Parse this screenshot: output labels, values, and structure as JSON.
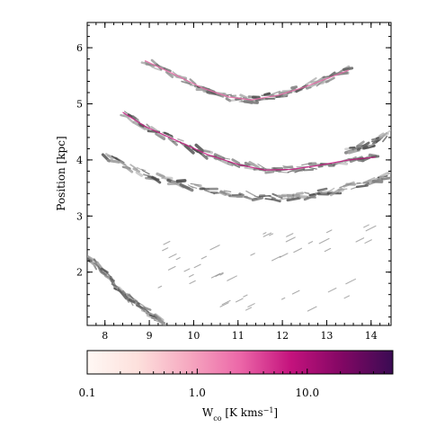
{
  "chart_data": {
    "type": "heatmap",
    "title": "",
    "xlabel": "",
    "ylabel": "Position [kpc]",
    "xlim": [
      7.6,
      14.45
    ],
    "ylim": [
      1.05,
      6.45
    ],
    "x_ticks": [
      "8",
      "9",
      "10",
      "11",
      "12",
      "13",
      "14"
    ],
    "y_ticks": [
      "2",
      "3",
      "4",
      "5",
      "6"
    ],
    "grid": false,
    "features": [
      {
        "name": "upper-arc",
        "points": [
          [
            8.9,
            5.77
          ],
          [
            9.5,
            5.55
          ],
          [
            10.2,
            5.28
          ],
          [
            10.8,
            5.12
          ],
          [
            11.3,
            5.07
          ],
          [
            11.9,
            5.15
          ],
          [
            12.5,
            5.3
          ],
          [
            13.0,
            5.45
          ],
          [
            13.5,
            5.6
          ]
        ],
        "intensity": 3
      },
      {
        "name": "middle-arc",
        "points": [
          [
            8.4,
            4.85
          ],
          [
            8.9,
            4.6
          ],
          [
            9.6,
            4.35
          ],
          [
            10.3,
            4.1
          ],
          [
            11.0,
            3.92
          ],
          [
            11.6,
            3.82
          ],
          [
            12.2,
            3.83
          ],
          [
            12.8,
            3.9
          ],
          [
            13.5,
            4.0
          ],
          [
            14.1,
            4.05
          ]
        ],
        "intensity": 9
      },
      {
        "name": "lower-arc",
        "points": [
          [
            8.0,
            4.08
          ],
          [
            8.6,
            3.85
          ],
          [
            9.2,
            3.68
          ],
          [
            9.9,
            3.55
          ],
          [
            10.6,
            3.44
          ],
          [
            11.3,
            3.35
          ],
          [
            12.0,
            3.32
          ],
          [
            12.7,
            3.38
          ],
          [
            13.4,
            3.5
          ],
          [
            14.0,
            3.62
          ],
          [
            14.45,
            3.72
          ]
        ],
        "intensity": 2.5
      },
      {
        "name": "left-edge-streak",
        "points": [
          [
            7.6,
            2.3
          ],
          [
            7.9,
            2.05
          ],
          [
            8.2,
            1.8
          ],
          [
            8.5,
            1.58
          ],
          [
            8.8,
            1.38
          ],
          [
            9.1,
            1.22
          ],
          [
            9.3,
            1.12
          ]
        ],
        "intensity": 2
      },
      {
        "name": "right-upper-streak",
        "points": [
          [
            13.5,
            4.15
          ],
          [
            13.8,
            4.25
          ],
          [
            14.1,
            4.32
          ],
          [
            14.35,
            4.45
          ]
        ],
        "intensity": 1.5
      }
    ],
    "colorbar": {
      "label_main": "W",
      "label_sub": "co",
      "label_units": " [K kms",
      "label_exp": "−1",
      "label_end": "]",
      "scale": "log",
      "range": [
        0.1,
        60
      ],
      "ticks": [
        {
          "value": 0.1,
          "label": "0.1"
        },
        {
          "value": 1.0,
          "label": "1.0"
        },
        {
          "value": 10.0,
          "label": "10.0"
        }
      ],
      "colors": [
        "#fff8f4",
        "#fde0dc",
        "#f6a8c0",
        "#ec67a8",
        "#c4127d",
        "#820764",
        "#3a0b53"
      ]
    }
  }
}
